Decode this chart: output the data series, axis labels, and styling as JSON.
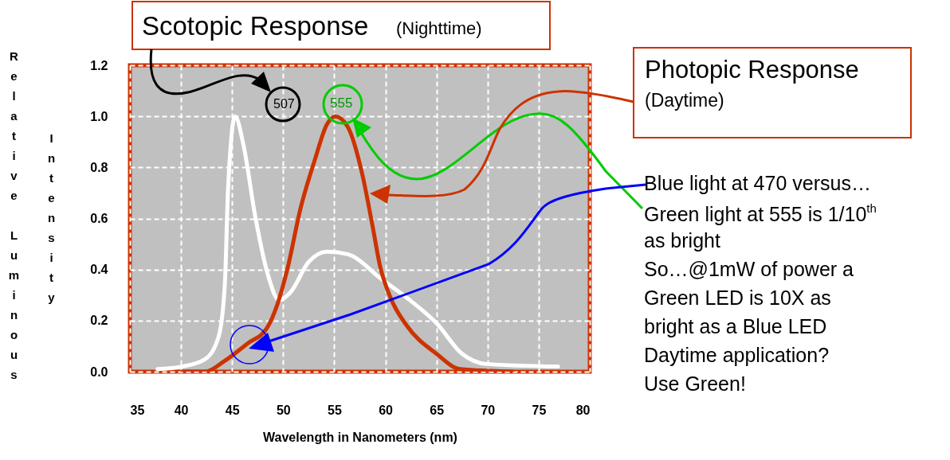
{
  "chart_data": {
    "type": "line",
    "xlabel": "Wavelength in Nanometers (nm)",
    "ylabel": "Relative Luminous Intensity",
    "series": [
      {
        "color": "#ffffff",
        "x": [
          37.7,
          40.1,
          42.4,
          43.7,
          44.3,
          44.6,
          45.3,
          46.1,
          47.3,
          48.5,
          49.6,
          50.7,
          52.5,
          54.3,
          56.3,
          59.7,
          62.4,
          65.0,
          67.5,
          69.9,
          76.9
        ],
        "values": [
          0.01,
          0.02,
          0.05,
          0.14,
          0.35,
          0.71,
          1.0,
          0.89,
          0.6,
          0.38,
          0.28,
          0.31,
          0.43,
          0.47,
          0.46,
          0.36,
          0.28,
          0.19,
          0.07,
          0.03,
          0.02
        ]
      },
      {
        "color": "#cc3300",
        "x": [
          40.1,
          42.4,
          44.2,
          46.5,
          48.4,
          49.4,
          50.4,
          51.7,
          53.1,
          54.3,
          55.1,
          56.3,
          57.7,
          58.7,
          59.5,
          60.5,
          62.1,
          65.0,
          67.3,
          72.5
        ],
        "values": [
          0.0,
          0.0,
          0.04,
          0.11,
          0.17,
          0.26,
          0.4,
          0.64,
          0.83,
          0.97,
          1.0,
          0.96,
          0.78,
          0.58,
          0.41,
          0.29,
          0.18,
          0.07,
          0.01,
          0.0
        ]
      }
    ],
    "xlim": [
      35,
      80
    ],
    "xticks": [
      35,
      40,
      45,
      50,
      55,
      60,
      65,
      70,
      75,
      80
    ],
    "ylim": [
      0,
      1.2
    ],
    "yticks": [
      {
        "value": 0,
        "label": "0.0"
      },
      {
        "value": 0.2,
        "label": "0.2"
      },
      {
        "value": 0.4,
        "label": "0.4"
      },
      {
        "value": 0.6,
        "label": "0.6"
      },
      {
        "value": 0.8,
        "label": "0.8"
      },
      {
        "value": 1.0,
        "label": "1.0"
      },
      {
        "value": 1.2,
        "label": "1.2"
      }
    ],
    "grid": true,
    "annotations": [
      "Scotopic Response",
      "(Nighttime)",
      "Photopic Response",
      "(Daytime)",
      "507",
      "555",
      "Blue light at 470 versus…",
      "Green light at 555 is 1/10$^{th}$",
      "as bright",
      "So…@1mW of power a",
      "Green LED is 10X as",
      "bright as a Blue LED",
      "Daytime application?",
      "Use Green!"
    ]
  }
}
